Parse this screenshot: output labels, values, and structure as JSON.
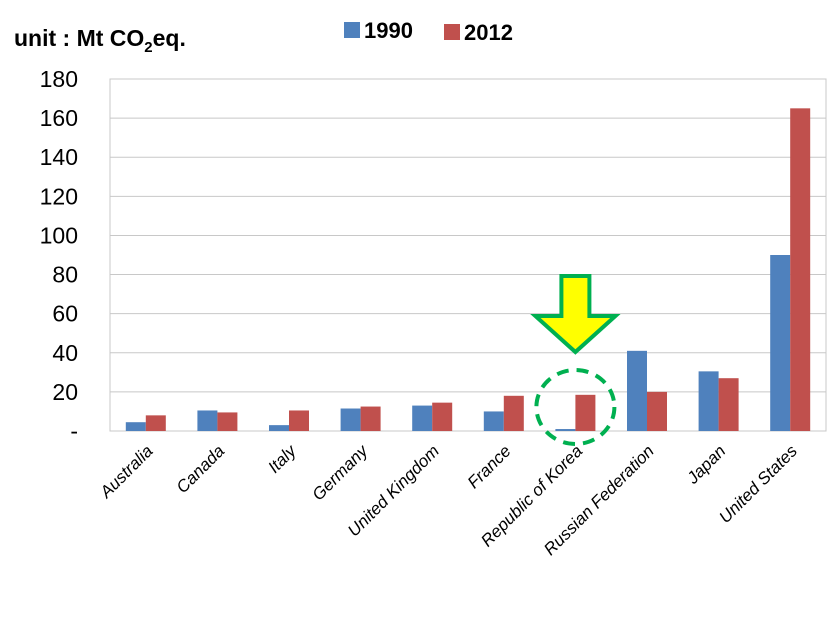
{
  "chart_data": {
    "type": "bar",
    "unit_label": {
      "prefix": "unit : Mt CO",
      "subscript": "2",
      "suffix": "eq."
    },
    "categories": [
      "Australia",
      "Canada",
      "Italy",
      "Germany",
      "United Kingdom",
      "France",
      "Republic of Korea",
      "Russian Federation",
      "Japan",
      "United States"
    ],
    "series": [
      {
        "name": "1990",
        "color": "#4F81BD",
        "values": [
          4.5,
          10.5,
          3,
          11.5,
          13,
          10,
          1,
          41,
          30.5,
          90
        ]
      },
      {
        "name": "2012",
        "color": "#C0504D",
        "values": [
          8,
          9.5,
          10.5,
          12.5,
          14.5,
          18,
          18.5,
          20,
          27,
          165
        ]
      }
    ],
    "ylim": [
      0,
      180
    ],
    "yticks": [
      0,
      20,
      40,
      60,
      80,
      100,
      120,
      140,
      160,
      180
    ],
    "ytick_labels": [
      "-",
      "20",
      "40",
      "60",
      "80",
      "100",
      "120",
      "140",
      "160",
      "180"
    ],
    "grid": true,
    "legend": "top",
    "highlight": {
      "category": "Republic of Korea",
      "arrow_color": "#FFFF00",
      "arrow_outline": "#00B050",
      "circle_color": "#00B050"
    }
  }
}
